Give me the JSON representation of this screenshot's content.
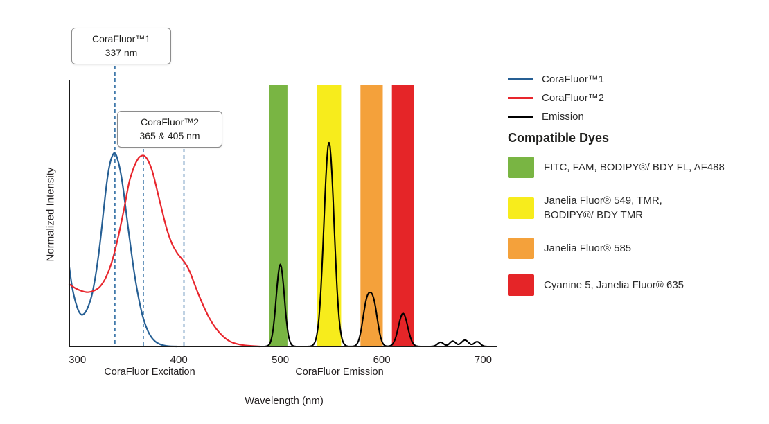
{
  "chart_data": {
    "type": "line",
    "xlabel": "Wavelength (nm)",
    "ylabel": "Normalized Intensity",
    "x_ticks": [
      300,
      400,
      500,
      600,
      700
    ],
    "x_range": [
      292,
      714
    ],
    "y_range": [
      0,
      1.0
    ],
    "grid": false,
    "axis_section_labels": [
      {
        "text": "CoraFluor Excitation"
      },
      {
        "text": "CoraFluor Emission"
      }
    ],
    "marker_line_color": "#2d6ca2",
    "markers": [
      {
        "label_line1": "CoraFluor™1",
        "label_line2": "337 nm",
        "wavelengths": [
          337
        ]
      },
      {
        "label_line1": "CoraFluor™2",
        "label_line2": "365 & 405 nm",
        "wavelengths": [
          365,
          405
        ]
      }
    ],
    "bands": [
      {
        "name": "green",
        "color": "#79b543",
        "from_nm": 489,
        "to_nm": 507
      },
      {
        "name": "yellow",
        "color": "#f7ec1c",
        "from_nm": 536,
        "to_nm": 560
      },
      {
        "name": "orange",
        "color": "#f4a13b",
        "from_nm": 579,
        "to_nm": 601
      },
      {
        "name": "red",
        "color": "#e52528",
        "from_nm": 610,
        "to_nm": 632
      }
    ],
    "excitation_series": [
      {
        "name": "CoraFluor™1",
        "color": "#265f94",
        "points": [
          [
            292,
            0.3
          ],
          [
            295,
            0.22
          ],
          [
            298,
            0.17
          ],
          [
            301,
            0.135
          ],
          [
            304,
            0.12
          ],
          [
            307,
            0.125
          ],
          [
            310,
            0.145
          ],
          [
            314,
            0.19
          ],
          [
            318,
            0.27
          ],
          [
            322,
            0.38
          ],
          [
            326,
            0.52
          ],
          [
            329,
            0.62
          ],
          [
            332,
            0.69
          ],
          [
            335,
            0.725
          ],
          [
            337,
            0.73
          ],
          [
            339,
            0.715
          ],
          [
            342,
            0.67
          ],
          [
            345,
            0.6
          ],
          [
            348,
            0.51
          ],
          [
            352,
            0.39
          ],
          [
            356,
            0.28
          ],
          [
            360,
            0.19
          ],
          [
            364,
            0.12
          ],
          [
            368,
            0.072
          ],
          [
            372,
            0.04
          ],
          [
            377,
            0.018
          ],
          [
            383,
            0.006
          ],
          [
            390,
            0.001
          ],
          [
            398,
            0
          ]
        ]
      },
      {
        "name": "CoraFluor™2",
        "color": "#e8262d",
        "points": [
          [
            292,
            0.235
          ],
          [
            298,
            0.22
          ],
          [
            304,
            0.21
          ],
          [
            310,
            0.205
          ],
          [
            316,
            0.21
          ],
          [
            322,
            0.225
          ],
          [
            328,
            0.26
          ],
          [
            334,
            0.32
          ],
          [
            340,
            0.41
          ],
          [
            346,
            0.52
          ],
          [
            351,
            0.62
          ],
          [
            356,
            0.68
          ],
          [
            360,
            0.71
          ],
          [
            363,
            0.72
          ],
          [
            366,
            0.72
          ],
          [
            370,
            0.7
          ],
          [
            374,
            0.66
          ],
          [
            378,
            0.6
          ],
          [
            383,
            0.52
          ],
          [
            388,
            0.445
          ],
          [
            393,
            0.39
          ],
          [
            398,
            0.355
          ],
          [
            403,
            0.33
          ],
          [
            407,
            0.31
          ],
          [
            411,
            0.28
          ],
          [
            415,
            0.24
          ],
          [
            419,
            0.2
          ],
          [
            424,
            0.155
          ],
          [
            429,
            0.115
          ],
          [
            434,
            0.082
          ],
          [
            440,
            0.052
          ],
          [
            446,
            0.03
          ],
          [
            452,
            0.016
          ],
          [
            459,
            0.008
          ],
          [
            468,
            0.003
          ],
          [
            480,
            0
          ]
        ]
      }
    ],
    "emission": {
      "name": "Emission",
      "color": "#000000",
      "peaks": [
        {
          "center": 500,
          "height": 0.31,
          "sigma": 4
        },
        {
          "center": 548,
          "height": 0.77,
          "sigma": 5
        },
        {
          "center": 585,
          "height": 0.15,
          "sigma": 4
        },
        {
          "center": 592,
          "height": 0.15,
          "sigma": 4
        },
        {
          "center": 621,
          "height": 0.125,
          "sigma": 4.5
        },
        {
          "center": 658,
          "height": 0.016,
          "sigma": 3
        },
        {
          "center": 670,
          "height": 0.02,
          "sigma": 3
        },
        {
          "center": 682,
          "height": 0.024,
          "sigma": 3.5
        },
        {
          "center": 694,
          "height": 0.018,
          "sigma": 3
        }
      ]
    }
  },
  "legend": {
    "items": [
      {
        "label": "CoraFluor™1",
        "color": "#265f94"
      },
      {
        "label": "CoraFluor™2",
        "color": "#e8262d"
      },
      {
        "label": "Emission",
        "color": "#000000"
      }
    ]
  },
  "compatible_dyes": {
    "heading": "Compatible Dyes",
    "items": [
      {
        "color": "#79b543",
        "label": "FITC, FAM, BODIPY®/ BDY FL, AF488"
      },
      {
        "color": "#f7ec1c",
        "label": "Janelia Fluor® 549, TMR,\nBODIPY®/ BDY TMR"
      },
      {
        "color": "#f4a13b",
        "label": "Janelia Fluor® 585"
      },
      {
        "color": "#e52528",
        "label": "Cyanine 5, Janelia Fluor® 635"
      }
    ]
  }
}
